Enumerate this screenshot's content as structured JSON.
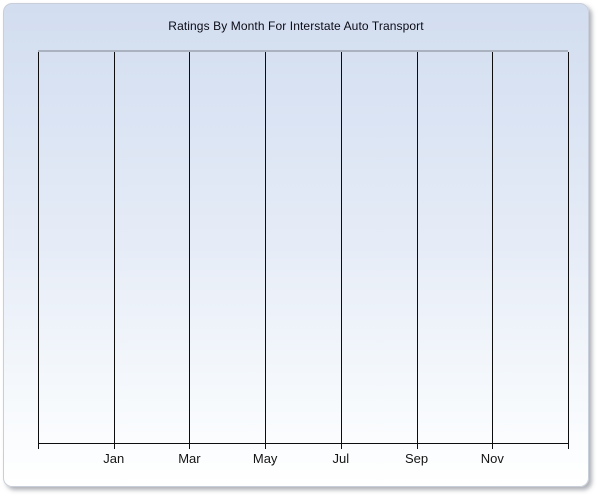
{
  "panel": {
    "border_color": "#c9cfda",
    "gradient_top": "#d2ddef",
    "gradient_bottom": "#ffffff"
  },
  "chart_data": {
    "type": "line",
    "title": "Ratings By Month For Interstate Auto Transport",
    "categories": [
      "Jan",
      "Mar",
      "May",
      "Jul",
      "Sep",
      "Nov"
    ],
    "series": [],
    "values": [],
    "xlabel": "",
    "ylabel": "",
    "x_gridline_count": 8,
    "horizontal_gridlines": false,
    "y_axis_labels_visible": false,
    "legend_position": "none",
    "plot_empty": true,
    "colors": {
      "gridline": "#0d0d0d",
      "axis_line": "#0d0d0d",
      "plot_top_border": "#aab1bf",
      "title_text": "#0b0b16",
      "tick_label_text": "#141414"
    }
  }
}
